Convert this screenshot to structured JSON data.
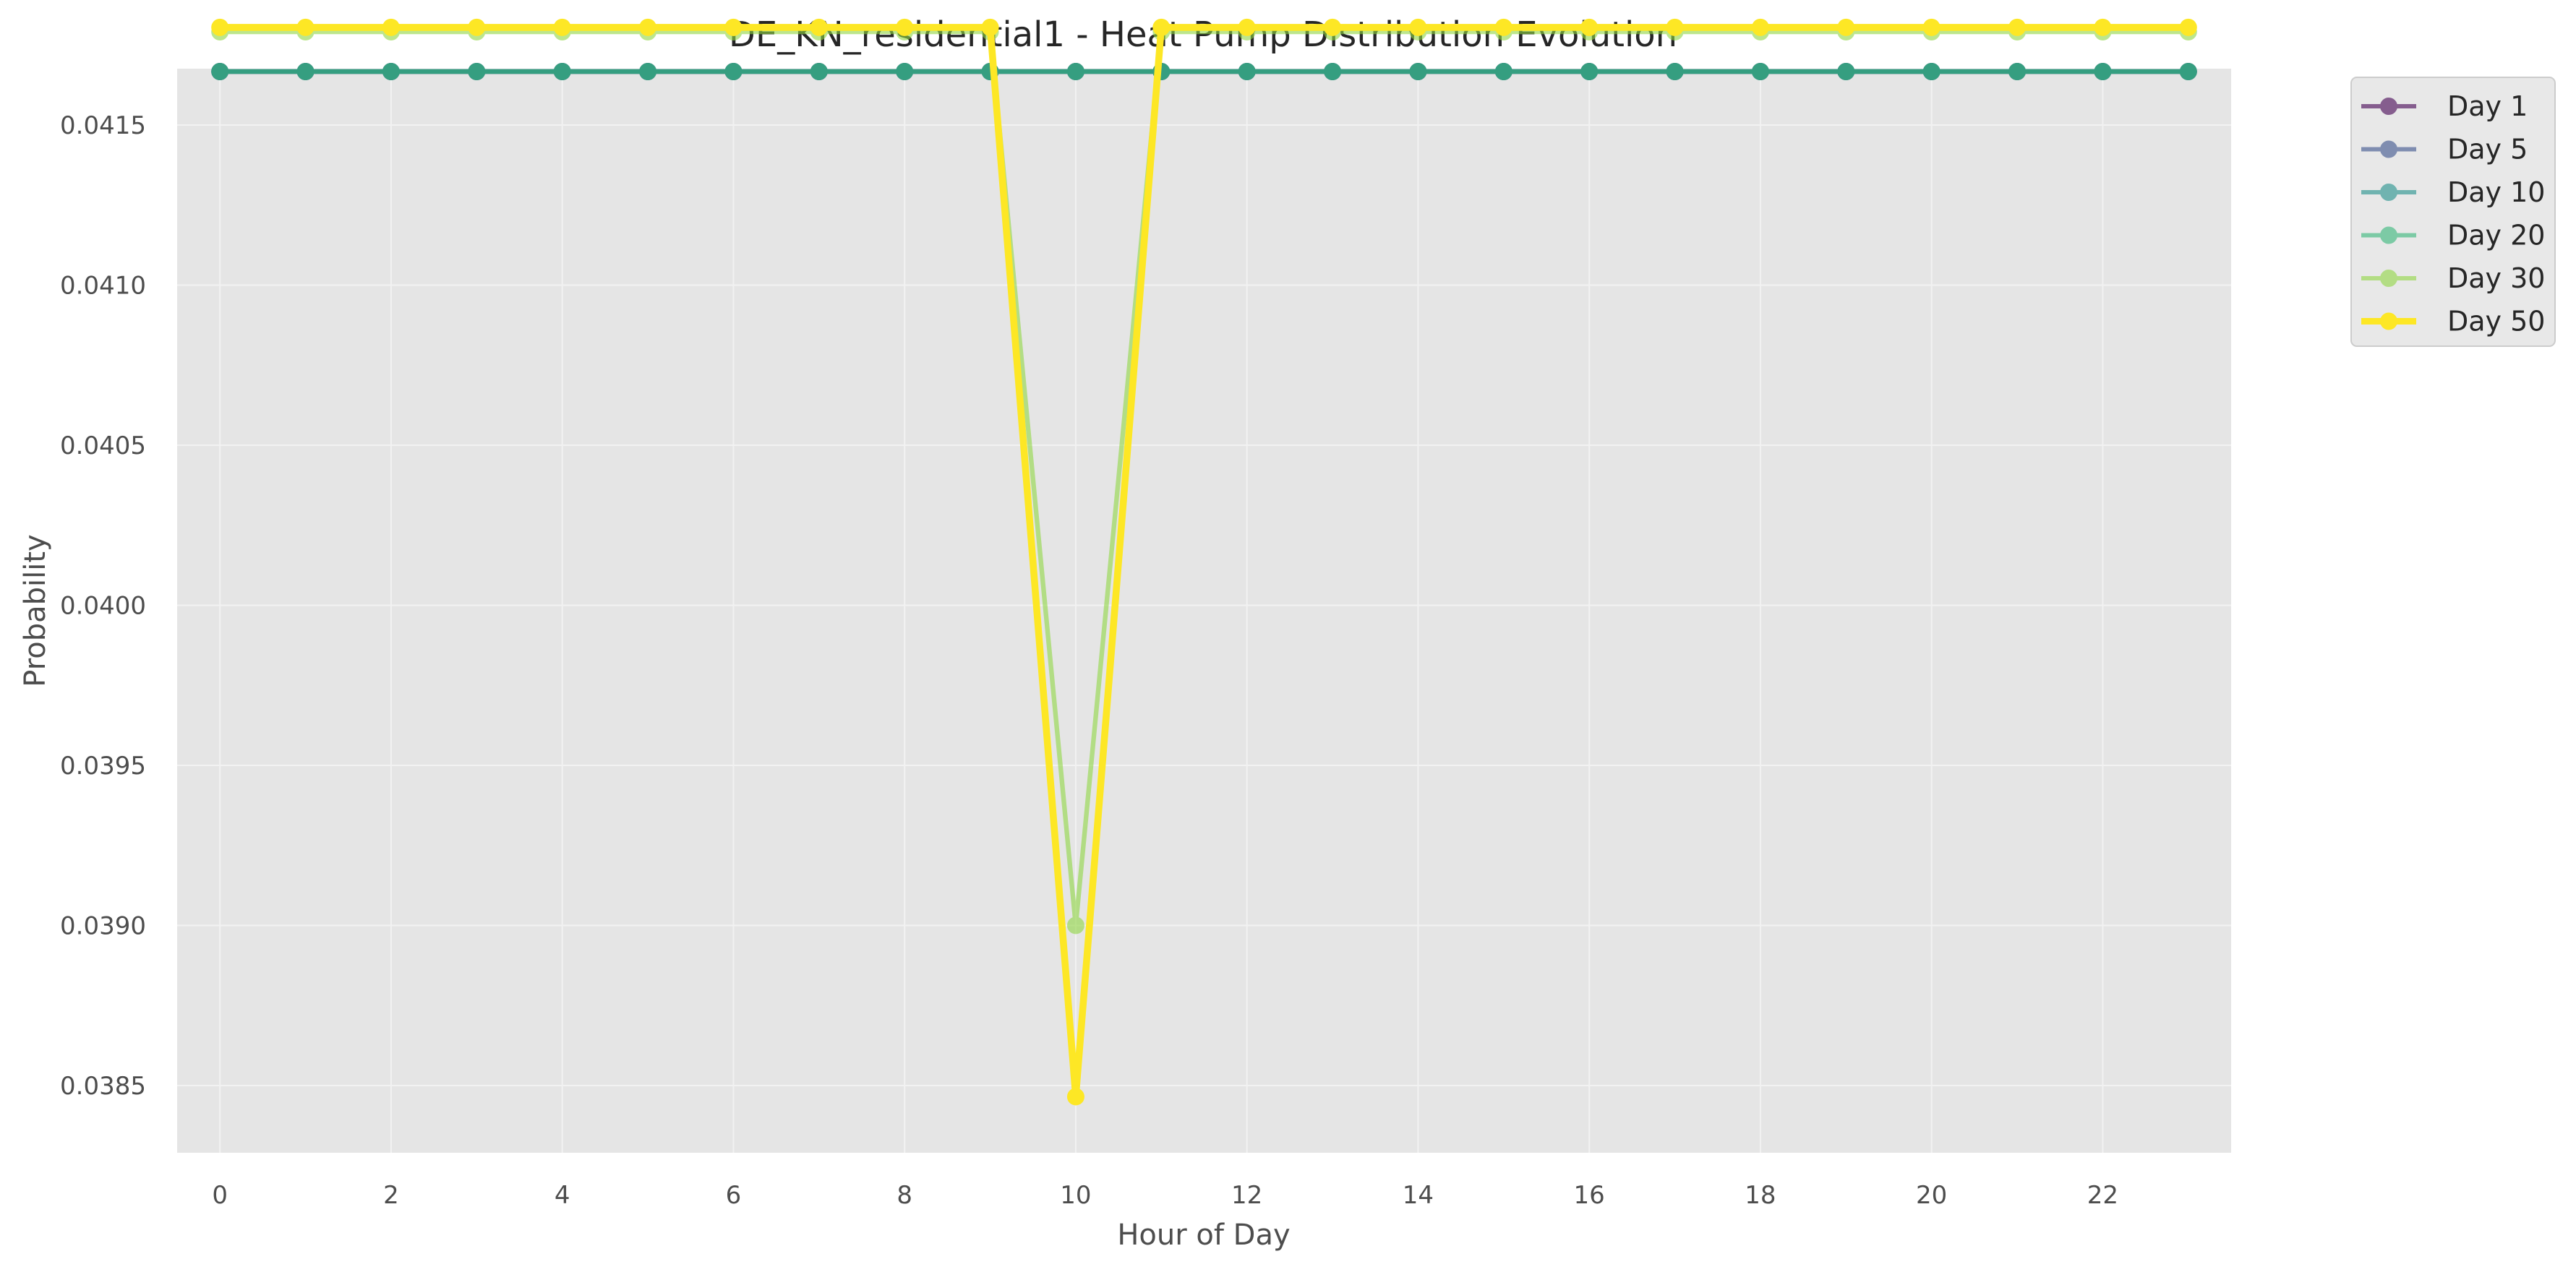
{
  "chart_data": {
    "type": "line",
    "title": "DE_KN_residential1 - Heat Pump Distribution Evolution",
    "xlabel": "Hour of Day",
    "ylabel": "Probability",
    "xlim": [
      -0.5,
      23.5
    ],
    "ylim": [
      0.03829,
      0.041676
    ],
    "x_ticks": [
      0,
      2,
      4,
      6,
      8,
      10,
      12,
      14,
      16,
      18,
      20,
      22
    ],
    "x_tick_labels": [
      "0",
      "2",
      "4",
      "6",
      "8",
      "10",
      "12",
      "14",
      "16",
      "18",
      "20",
      "22"
    ],
    "y_ticks": [
      0.0385,
      0.039,
      0.0395,
      0.04,
      0.0405,
      0.041,
      0.0415
    ],
    "y_tick_labels": [
      "0.0385",
      "0.0390",
      "0.0395",
      "0.0400",
      "0.0405",
      "0.0410",
      "0.0415"
    ],
    "grid": true,
    "background": "#e5e5e5",
    "legend_position": "outside upper right",
    "x": [
      0,
      1,
      2,
      3,
      4,
      5,
      6,
      7,
      8,
      9,
      10,
      11,
      12,
      13,
      14,
      15,
      16,
      17,
      18,
      19,
      20,
      21,
      22,
      23
    ],
    "series": [
      {
        "name": "Day 1",
        "color": "#440154",
        "opacity": 0.6,
        "line_width": 2,
        "values": [
          0.041667,
          0.041667,
          0.041667,
          0.041667,
          0.041667,
          0.041667,
          0.041667,
          0.041667,
          0.041667,
          0.041667,
          0.041667,
          0.041667,
          0.041667,
          0.041667,
          0.041667,
          0.041667,
          0.041667,
          0.041667,
          0.041667,
          0.041667,
          0.041667,
          0.041667,
          0.041667,
          0.041667
        ]
      },
      {
        "name": "Day 5",
        "color": "#3b528b",
        "opacity": 0.6,
        "line_width": 2,
        "values": [
          0.041667,
          0.041667,
          0.041667,
          0.041667,
          0.041667,
          0.041667,
          0.041667,
          0.041667,
          0.041667,
          0.041667,
          0.041667,
          0.041667,
          0.041667,
          0.041667,
          0.041667,
          0.041667,
          0.041667,
          0.041667,
          0.041667,
          0.041667,
          0.041667,
          0.041667,
          0.041667,
          0.041667
        ]
      },
      {
        "name": "Day 10",
        "color": "#21918c",
        "opacity": 0.6,
        "line_width": 2,
        "values": [
          0.041667,
          0.041667,
          0.041667,
          0.041667,
          0.041667,
          0.041667,
          0.041667,
          0.041667,
          0.041667,
          0.041667,
          0.041667,
          0.041667,
          0.041667,
          0.041667,
          0.041667,
          0.041667,
          0.041667,
          0.041667,
          0.041667,
          0.041667,
          0.041667,
          0.041667,
          0.041667,
          0.041667
        ]
      },
      {
        "name": "Day 20",
        "color": "#35b779",
        "opacity": 0.6,
        "line_width": 2,
        "values": [
          0.041667,
          0.041667,
          0.041667,
          0.041667,
          0.041667,
          0.041667,
          0.041667,
          0.041667,
          0.041667,
          0.041667,
          0.041667,
          0.041667,
          0.041667,
          0.041667,
          0.041667,
          0.041667,
          0.041667,
          0.041667,
          0.041667,
          0.041667,
          0.041667,
          0.041667,
          0.041667,
          0.041667
        ]
      },
      {
        "name": "Day 30",
        "color": "#90d743",
        "opacity": 0.6,
        "line_width": 2,
        "values": [
          0.041791,
          0.041791,
          0.041791,
          0.041791,
          0.041791,
          0.041791,
          0.041791,
          0.041791,
          0.041791,
          0.041791,
          0.039,
          0.041791,
          0.041791,
          0.041791,
          0.041791,
          0.041791,
          0.041791,
          0.041791,
          0.041791,
          0.041791,
          0.041791,
          0.041791,
          0.041791,
          0.041791
        ]
      },
      {
        "name": "Day 50",
        "color": "#fde725",
        "opacity": 1.0,
        "line_width": 3,
        "values": [
          0.041805,
          0.041805,
          0.041805,
          0.041805,
          0.041805,
          0.041805,
          0.041805,
          0.041805,
          0.041805,
          0.041805,
          0.038465,
          0.041805,
          0.041805,
          0.041805,
          0.041805,
          0.041805,
          0.041805,
          0.041805,
          0.041805,
          0.041805,
          0.041805,
          0.041805,
          0.041805,
          0.041805
        ]
      }
    ]
  }
}
